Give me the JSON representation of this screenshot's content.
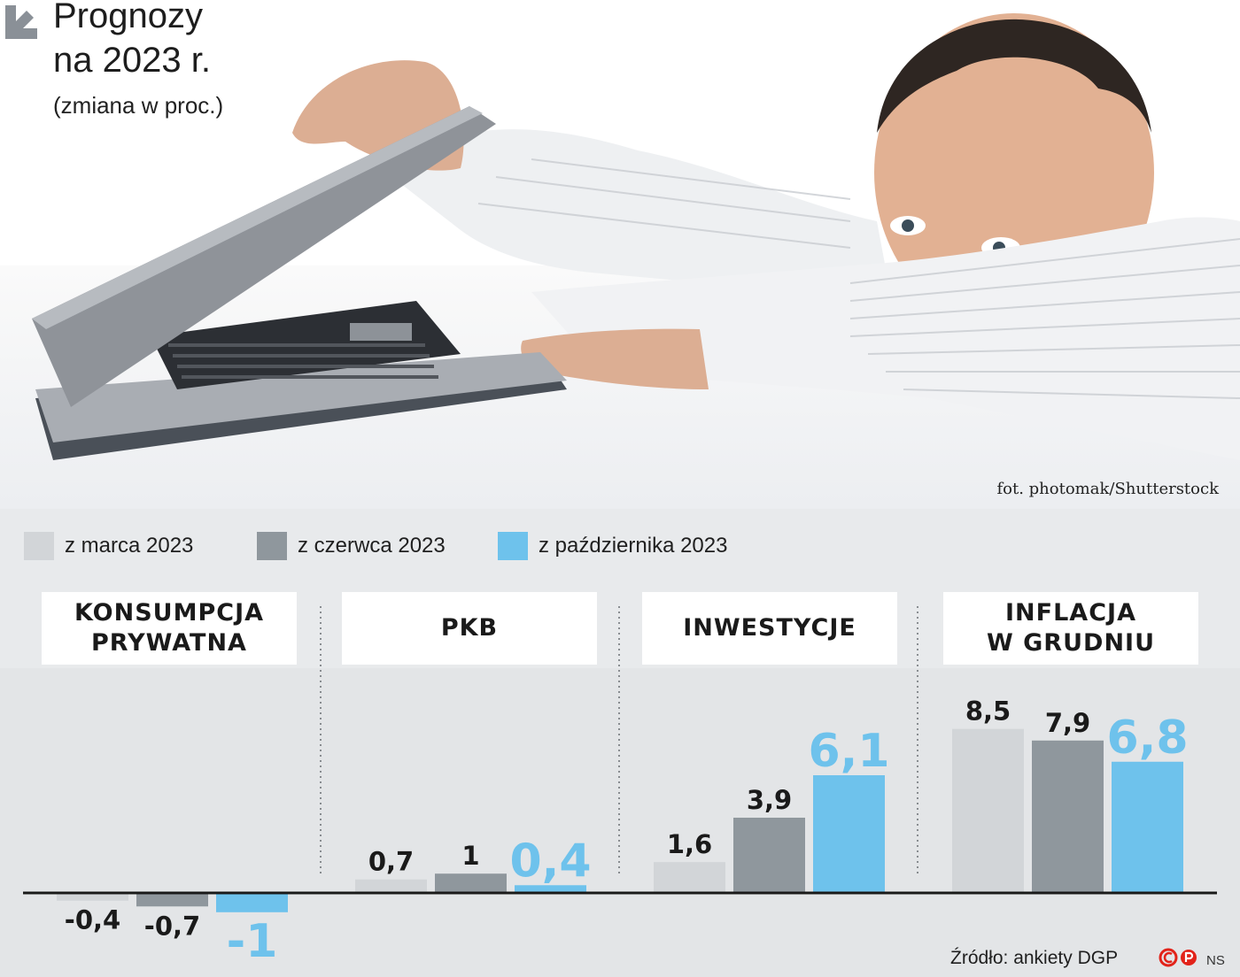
{
  "header": {
    "title_line1": "Prognozy",
    "title_line2": "na 2023 r.",
    "subtitle": "(zmiana w proc.)",
    "photo_credit": "fot. photomak/Shutterstock"
  },
  "legend": [
    {
      "label": "z marca 2023",
      "color": "#d2d5d8"
    },
    {
      "label": "z czerwca 2023",
      "color": "#8f979d"
    },
    {
      "label": "z października 2023",
      "color": "#6ec2ec"
    }
  ],
  "chart_data": {
    "type": "bar",
    "series": [
      {
        "name": "z marca 2023",
        "color": "#d2d5d8"
      },
      {
        "name": "z czerwca 2023",
        "color": "#8f979d"
      },
      {
        "name": "z października 2023",
        "color": "#6ec2ec"
      }
    ],
    "panels": [
      {
        "title": "KONSUMPCJA\nPRYWATNA",
        "values": [
          -0.4,
          -0.7,
          -1
        ],
        "labels": [
          "-0,4",
          "-0,7",
          "-1"
        ]
      },
      {
        "title": "PKB",
        "values": [
          0.7,
          1,
          0.4
        ],
        "labels": [
          "0,7",
          "1",
          "0,4"
        ]
      },
      {
        "title": "INWESTYCJE",
        "values": [
          1.6,
          3.9,
          6.1
        ],
        "labels": [
          "1,6",
          "3,9",
          "6,1"
        ]
      },
      {
        "title": "INFLACJA\nW GRUDNIU",
        "values": [
          8.5,
          7.9,
          6.8
        ],
        "labels": [
          "8,5",
          "7,9",
          "6,8"
        ]
      }
    ],
    "baseline": 0
  },
  "footer": {
    "source": "Źródło: ankiety DGP",
    "mark": "NS"
  }
}
